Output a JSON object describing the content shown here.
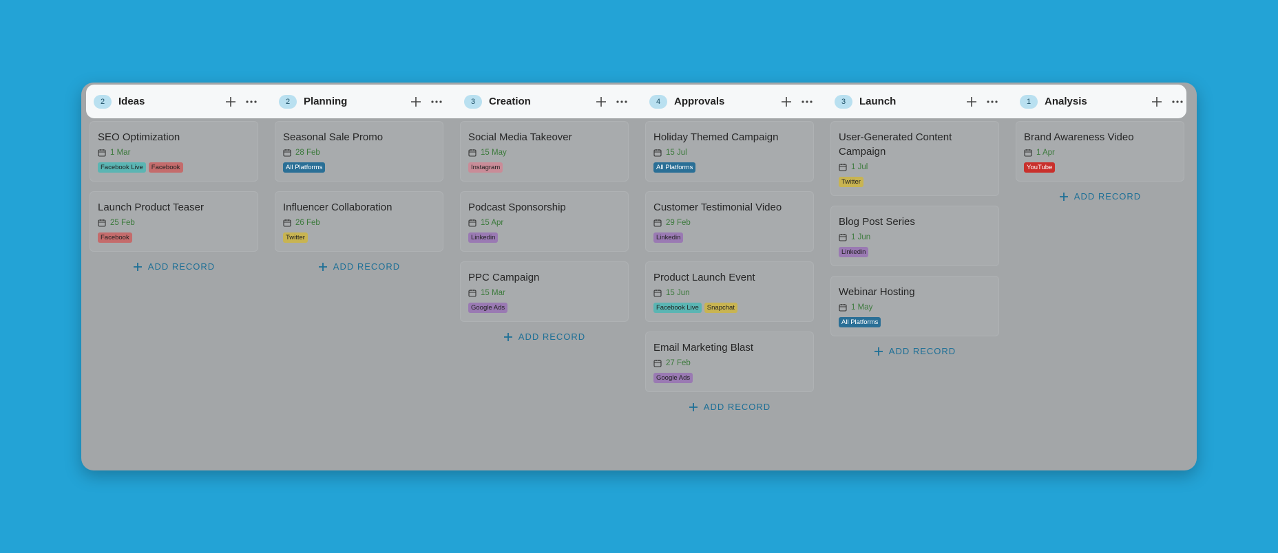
{
  "add_label": "ADD RECORD",
  "columns": [
    {
      "count": 2,
      "name": "Ideas",
      "cards": [
        {
          "title": "SEO Optimization",
          "date": "1 Mar",
          "tags": [
            {
              "label": "Facebook Live",
              "color": "#5bb5b3"
            },
            {
              "label": "Facebook",
              "color": "#c46c6c"
            }
          ]
        },
        {
          "title": "Launch Product Teaser",
          "date": "25 Feb",
          "tags": [
            {
              "label": "Facebook",
              "color": "#c46c6c"
            }
          ]
        }
      ]
    },
    {
      "count": 2,
      "name": "Planning",
      "cards": [
        {
          "title": "Seasonal Sale Promo",
          "date": "28 Feb",
          "tags": [
            {
              "label": "All Platforms",
              "color": "#2a6f96"
            }
          ]
        },
        {
          "title": "Influencer Collaboration",
          "date": "26 Feb",
          "tags": [
            {
              "label": "Twitter",
              "color": "#c8b452"
            }
          ]
        }
      ]
    },
    {
      "count": 3,
      "name": "Creation",
      "cards": [
        {
          "title": "Social Media Takeover",
          "date": "15 May",
          "tags": [
            {
              "label": "Instagram",
              "color": "#c98c98"
            }
          ]
        },
        {
          "title": "Podcast Sponsorship",
          "date": "15 Apr",
          "tags": [
            {
              "label": "Linkedin",
              "color": "#9a7ab3"
            }
          ]
        },
        {
          "title": "PPC Campaign",
          "date": "15 Mar",
          "tags": [
            {
              "label": "Google Ads",
              "color": "#9a7ab3"
            }
          ]
        }
      ]
    },
    {
      "count": 4,
      "name": "Approvals",
      "cards": [
        {
          "title": "Holiday Themed Campaign",
          "date": "15 Jul",
          "tags": [
            {
              "label": "All Platforms",
              "color": "#2a6f96"
            }
          ]
        },
        {
          "title": "Customer Testimonial Video",
          "date": "29 Feb",
          "tags": [
            {
              "label": "Linkedin",
              "color": "#9a7ab3"
            }
          ]
        },
        {
          "title": "Product Launch Event",
          "date": "15 Jun",
          "tags": [
            {
              "label": "Facebook Live",
              "color": "#5bb5b3"
            },
            {
              "label": "Snapchat",
              "color": "#c8b452"
            }
          ]
        },
        {
          "title": "Email Marketing Blast",
          "date": "27 Feb",
          "tags": [
            {
              "label": "Google Ads",
              "color": "#9a7ab3"
            }
          ]
        }
      ]
    },
    {
      "count": 3,
      "name": "Launch",
      "cards": [
        {
          "title": "User-Generated Content Campaign",
          "date": "1 Jul",
          "tags": [
            {
              "label": "Twitter",
              "color": "#c8b452"
            }
          ]
        },
        {
          "title": "Blog Post Series",
          "date": "1 Jun",
          "tags": [
            {
              "label": "Linkedin",
              "color": "#9a7ab3"
            }
          ]
        },
        {
          "title": "Webinar Hosting",
          "date": "1 May",
          "tags": [
            {
              "label": "All Platforms",
              "color": "#2a6f96"
            }
          ]
        }
      ]
    },
    {
      "count": 1,
      "name": "Analysis",
      "cards": [
        {
          "title": "Brand Awareness Video",
          "date": "1 Apr",
          "tags": [
            {
              "label": "YouTube",
              "color": "#c9302c"
            }
          ]
        }
      ]
    }
  ]
}
